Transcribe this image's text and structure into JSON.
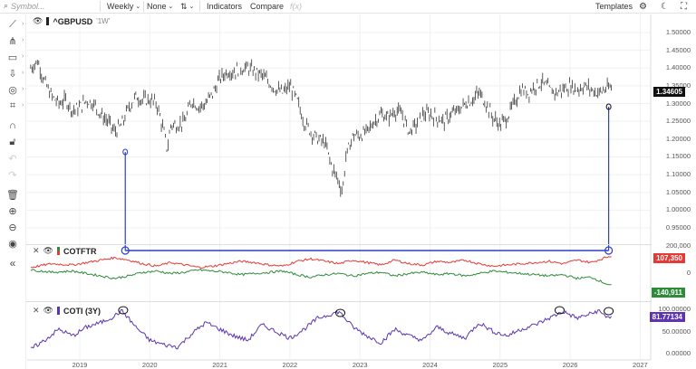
{
  "toolbar": {
    "symbol_placeholder": "Symbol...",
    "interval": "Weekly",
    "comparison": "None",
    "chart_type_icon": "candles-icon",
    "indicators": "Indicators",
    "compare": "Compare",
    "fx": "f(x)",
    "templates": "Templates",
    "icons": [
      "search-icon",
      "chevron-down-icon",
      "settings-icon",
      "theme-toggle-icon"
    ]
  },
  "left_tools": [
    "trend-line-icon",
    "pitchfork-icon",
    "rectangle-icon",
    "arrow-icon",
    "circle-icon",
    "pattern-icon",
    "magnet-icon",
    "lock-icon",
    "undo-icon",
    "redo-icon",
    "trash-icon",
    "zoom-in-icon",
    "zoom-out-icon",
    "visibility-icon"
  ],
  "collapse_icon": "double-chevron-left-icon",
  "main_pane": {
    "symbol": "^GBPUSD",
    "resolution": "'1W'",
    "last_price": "1.34605",
    "y_ticks": [
      "1.50000",
      "1.45000",
      "1.40000",
      "1.35000",
      "1.30000",
      "1.25000",
      "1.20000",
      "1.15000",
      "1.10000",
      "1.05000",
      "1.00000",
      "0.95000"
    ]
  },
  "cot_pane": {
    "name": "COTFTR",
    "y_ticks": [
      "200,000",
      "0"
    ],
    "value_red": "107,350",
    "value_green": "-140,911",
    "color_red": "#e53935",
    "color_green": "#2e8b3a"
  },
  "coti_pane": {
    "name": "COTI (3Y)",
    "y_ticks": [
      "100.00000",
      "50.00000",
      "0.00000"
    ],
    "value": "81.77134",
    "color": "#5e35b1"
  },
  "x_axis": [
    "2019",
    "2020",
    "2021",
    "2022",
    "2023",
    "2024",
    "2025",
    "2026",
    "2027"
  ],
  "annotation_color": "#2d3fc4",
  "chart_data": {
    "type": "line",
    "price_series": {
      "x": [
        2018.3,
        2018.4,
        2018.5,
        2018.6,
        2018.7,
        2018.8,
        2018.9,
        2019.0,
        2019.1,
        2019.2,
        2019.3,
        2019.4,
        2019.5,
        2019.6,
        2019.7,
        2019.8,
        2019.9,
        2020.0,
        2020.1,
        2020.2,
        2020.25,
        2020.3,
        2020.4,
        2020.5,
        2020.6,
        2020.7,
        2020.8,
        2020.9,
        2021.0,
        2021.1,
        2021.2,
        2021.3,
        2021.4,
        2021.5,
        2021.6,
        2021.7,
        2021.8,
        2021.9,
        2022.0,
        2022.1,
        2022.2,
        2022.3,
        2022.4,
        2022.5,
        2022.6,
        2022.7,
        2022.75,
        2022.8,
        2022.9,
        2023.0,
        2023.1,
        2023.2,
        2023.3,
        2023.4,
        2023.5,
        2023.6,
        2023.7,
        2023.8,
        2023.9,
        2024.0,
        2024.1,
        2024.2,
        2024.3,
        2024.4,
        2024.5,
        2024.6,
        2024.7,
        2024.8,
        2024.9,
        2025.0,
        2025.1,
        2025.2,
        2025.3,
        2025.4,
        2025.5,
        2025.6,
        2025.7,
        2025.8,
        2025.9,
        2026.0,
        2026.1,
        2026.2,
        2026.3,
        2026.4,
        2026.5,
        2026.6
      ],
      "y": [
        1.4,
        1.42,
        1.36,
        1.32,
        1.3,
        1.31,
        1.28,
        1.29,
        1.31,
        1.3,
        1.27,
        1.25,
        1.22,
        1.24,
        1.29,
        1.32,
        1.31,
        1.31,
        1.3,
        1.22,
        1.17,
        1.24,
        1.24,
        1.25,
        1.31,
        1.29,
        1.3,
        1.33,
        1.37,
        1.39,
        1.39,
        1.4,
        1.4,
        1.39,
        1.38,
        1.36,
        1.34,
        1.33,
        1.35,
        1.31,
        1.25,
        1.22,
        1.2,
        1.19,
        1.12,
        1.08,
        1.05,
        1.15,
        1.21,
        1.21,
        1.22,
        1.25,
        1.27,
        1.26,
        1.28,
        1.27,
        1.22,
        1.24,
        1.27,
        1.27,
        1.26,
        1.25,
        1.27,
        1.28,
        1.3,
        1.31,
        1.33,
        1.3,
        1.26,
        1.24,
        1.26,
        1.3,
        1.34,
        1.33,
        1.35,
        1.36,
        1.34,
        1.33,
        1.34,
        1.35,
        1.34,
        1.35,
        1.34,
        1.33,
        1.34,
        1.34605
      ]
    },
    "cot_series": [
      {
        "x": [
          2018.3,
          2018.6,
          2018.9,
          2019.2,
          2019.5,
          2019.7,
          2019.9,
          2020.1,
          2020.3,
          2020.5,
          2020.7,
          2020.9,
          2021.1,
          2021.3,
          2021.5,
          2021.7,
          2021.9,
          2022.1,
          2022.3,
          2022.5,
          2022.7,
          2022.9,
          2023.1,
          2023.3,
          2023.5,
          2023.7,
          2023.9,
          2024.1,
          2024.3,
          2024.5,
          2024.7,
          2024.9,
          2025.1,
          2025.3,
          2025.5,
          2025.7,
          2025.9,
          2026.1,
          2026.3,
          2026.5,
          2026.6
        ],
        "y": [
          10000,
          40000,
          30000,
          60000,
          90000,
          70000,
          40000,
          20000,
          50000,
          30000,
          10000,
          20000,
          40000,
          60000,
          50000,
          30000,
          20000,
          60000,
          80000,
          60000,
          40000,
          70000,
          50000,
          30000,
          70000,
          40000,
          30000,
          60000,
          50000,
          70000,
          40000,
          20000,
          30000,
          40000,
          50000,
          60000,
          40000,
          70000,
          50000,
          90000,
          107350
        ]
      },
      {
        "x": [
          2018.3,
          2018.6,
          2018.9,
          2019.2,
          2019.5,
          2019.7,
          2019.9,
          2020.1,
          2020.3,
          2020.5,
          2020.7,
          2020.9,
          2021.1,
          2021.3,
          2021.5,
          2021.7,
          2021.9,
          2022.1,
          2022.3,
          2022.5,
          2022.7,
          2022.9,
          2023.1,
          2023.3,
          2023.5,
          2023.7,
          2023.9,
          2024.1,
          2024.3,
          2024.5,
          2024.7,
          2024.9,
          2025.1,
          2025.3,
          2025.5,
          2025.7,
          2025.9,
          2026.1,
          2026.3,
          2026.5,
          2026.6
        ],
        "y": [
          -10000,
          -30000,
          -20000,
          -50000,
          -80000,
          -60000,
          -30000,
          -20000,
          -40000,
          -30000,
          -10000,
          -20000,
          -30000,
          -50000,
          -40000,
          -30000,
          -20000,
          -50000,
          -70000,
          -50000,
          -40000,
          -60000,
          -40000,
          -30000,
          -60000,
          -40000,
          -30000,
          -50000,
          -40000,
          -60000,
          -40000,
          -20000,
          -30000,
          -40000,
          -50000,
          -60000,
          -50000,
          -80000,
          -70000,
          -120000,
          -140911
        ]
      }
    ],
    "coti_series": {
      "x": [
        2018.3,
        2018.5,
        2018.7,
        2018.9,
        2019.1,
        2019.3,
        2019.5,
        2019.6,
        2019.8,
        2020.0,
        2020.2,
        2020.4,
        2020.6,
        2020.8,
        2021.0,
        2021.2,
        2021.4,
        2021.6,
        2021.8,
        2022.0,
        2022.2,
        2022.4,
        2022.6,
        2022.7,
        2022.9,
        2023.1,
        2023.3,
        2023.5,
        2023.7,
        2023.9,
        2024.1,
        2024.3,
        2024.5,
        2024.7,
        2024.9,
        2025.1,
        2025.3,
        2025.5,
        2025.7,
        2025.9,
        2026.1,
        2026.3,
        2026.4,
        2026.5,
        2026.6
      ],
      "y": [
        10,
        30,
        55,
        40,
        60,
        70,
        85,
        98,
        60,
        30,
        20,
        15,
        45,
        70,
        55,
        40,
        30,
        65,
        50,
        35,
        55,
        80,
        90,
        95,
        60,
        40,
        25,
        55,
        40,
        30,
        60,
        45,
        35,
        70,
        50,
        40,
        55,
        65,
        80,
        95,
        80,
        90,
        97,
        85,
        81.77134
      ]
    }
  }
}
